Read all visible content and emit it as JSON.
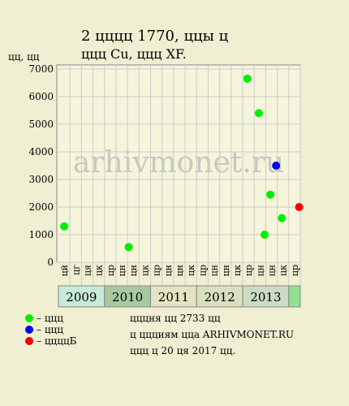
{
  "chart_data": {
    "type": "scatter",
    "title": "2 цццц 1770, ццы ц",
    "subtitle": "ццц Cu, ццц XF.",
    "y_label": "цц, цц",
    "watermark": "arhivmonet.ru",
    "x_labels": [
      "цй",
      "цг",
      "ця",
      "цк",
      "цр",
      "цн",
      "цн",
      "цк",
      "цр",
      "цн",
      "цн",
      "цк",
      "цр",
      "цн",
      "цн",
      "цк",
      "цр",
      "цн",
      "цн",
      "цк",
      "цр"
    ],
    "years": [
      "2009",
      "2010",
      "2011",
      "2012",
      "2013"
    ],
    "xlim": [
      0,
      21
    ],
    "ylim": [
      0,
      7000
    ],
    "yticks": [
      0,
      1000,
      2000,
      3000,
      4000,
      5000,
      6000,
      7000
    ],
    "grid": true,
    "series": [
      {
        "name": "– ццц",
        "color": "#00ee00",
        "x": [
          0.5,
          6.1,
          16.4,
          17.4,
          17.9,
          18.4,
          19.4
        ],
        "values": [
          1300,
          550,
          6650,
          5400,
          1000,
          2450,
          1600
        ]
      },
      {
        "name": "– ццц",
        "color": "#0000ee",
        "x": [
          18.9
        ],
        "values": [
          3500
        ]
      },
      {
        "name": "– ццццБ",
        "color": "#ee0000",
        "x": [
          20.9
        ],
        "values": [
          2000
        ]
      }
    ],
    "footer": [
      "цццня цц 2733 цц",
      "ц ццциям цца ARHIVMONET.RU",
      "ццц ц 20 ця 2017 цц."
    ]
  }
}
